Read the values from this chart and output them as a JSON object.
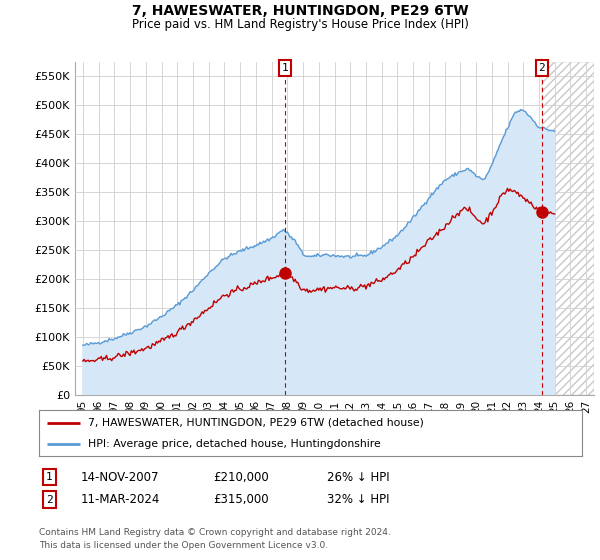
{
  "title": "7, HAWESWATER, HUNTINGDON, PE29 6TW",
  "subtitle": "Price paid vs. HM Land Registry's House Price Index (HPI)",
  "ylabel_ticks": [
    "£0",
    "£50K",
    "£100K",
    "£150K",
    "£200K",
    "£250K",
    "£300K",
    "£350K",
    "£400K",
    "£450K",
    "£500K",
    "£550K"
  ],
  "ytick_values": [
    0,
    50000,
    100000,
    150000,
    200000,
    250000,
    300000,
    350000,
    400000,
    450000,
    500000,
    550000
  ],
  "ylim": [
    0,
    575000
  ],
  "xlim_start": 1994.5,
  "xlim_end": 2027.5,
  "xtick_years": [
    1995,
    1996,
    1997,
    1998,
    1999,
    2000,
    2001,
    2002,
    2003,
    2004,
    2005,
    2006,
    2007,
    2008,
    2009,
    2010,
    2011,
    2012,
    2013,
    2014,
    2015,
    2016,
    2017,
    2018,
    2019,
    2020,
    2021,
    2022,
    2023,
    2024,
    2025,
    2026,
    2027
  ],
  "hpi_color": "#5b9bd5",
  "hpi_fill_color": "#d6e8f7",
  "price_color": "#c00000",
  "sale1_x": 2007.87,
  "sale1_y": 210000,
  "sale1_label": "1",
  "sale2_x": 2024.19,
  "sale2_y": 315000,
  "sale2_label": "2",
  "legend_line1": "7, HAWESWATER, HUNTINGDON, PE29 6TW (detached house)",
  "legend_line2": "HPI: Average price, detached house, Huntingdonshire",
  "footer": "Contains HM Land Registry data © Crown copyright and database right 2024.\nThis data is licensed under the Open Government Licence v3.0.",
  "background_color": "#ffffff",
  "grid_color": "#d0d0d0",
  "hatch_color": "#c8c8c8"
}
